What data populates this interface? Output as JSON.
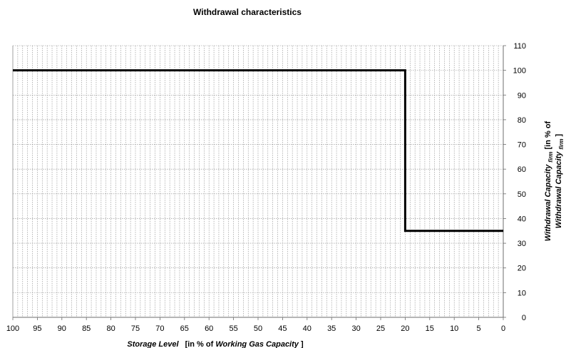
{
  "chart_data": {
    "type": "line",
    "title": "Withdrawal characteristics",
    "xlabel": {
      "main": "Storage Level",
      "bracket_open": "[in % of ",
      "emph": "Working Gas Capacity",
      "bracket_close": "]"
    },
    "ylabel": {
      "line1_main": "Withdrawal Capacity",
      "line1_sub": "firm",
      "line1_tail": " [in % of",
      "line2_main": "Withdrawal Capacity",
      "line2_sub": "firm",
      "line2_tail": "]"
    },
    "xlim": [
      100,
      0
    ],
    "ylim": [
      0,
      110
    ],
    "x_ticks": [
      "100",
      "95",
      "90",
      "85",
      "80",
      "75",
      "70",
      "65",
      "60",
      "55",
      "50",
      "45",
      "40",
      "35",
      "30",
      "25",
      "20",
      "15",
      "10",
      "5",
      "0"
    ],
    "y_ticks": [
      "0",
      "10",
      "20",
      "30",
      "40",
      "50",
      "60",
      "70",
      "80",
      "90",
      "100",
      "110"
    ],
    "x_minor_step": 1,
    "y_grid_step": 10,
    "grid": true,
    "y_axis_side": "right",
    "series": [
      {
        "x": [
          100,
          20,
          20,
          0
        ],
        "y": [
          100,
          100,
          35,
          35
        ],
        "color": "#000000"
      }
    ]
  }
}
